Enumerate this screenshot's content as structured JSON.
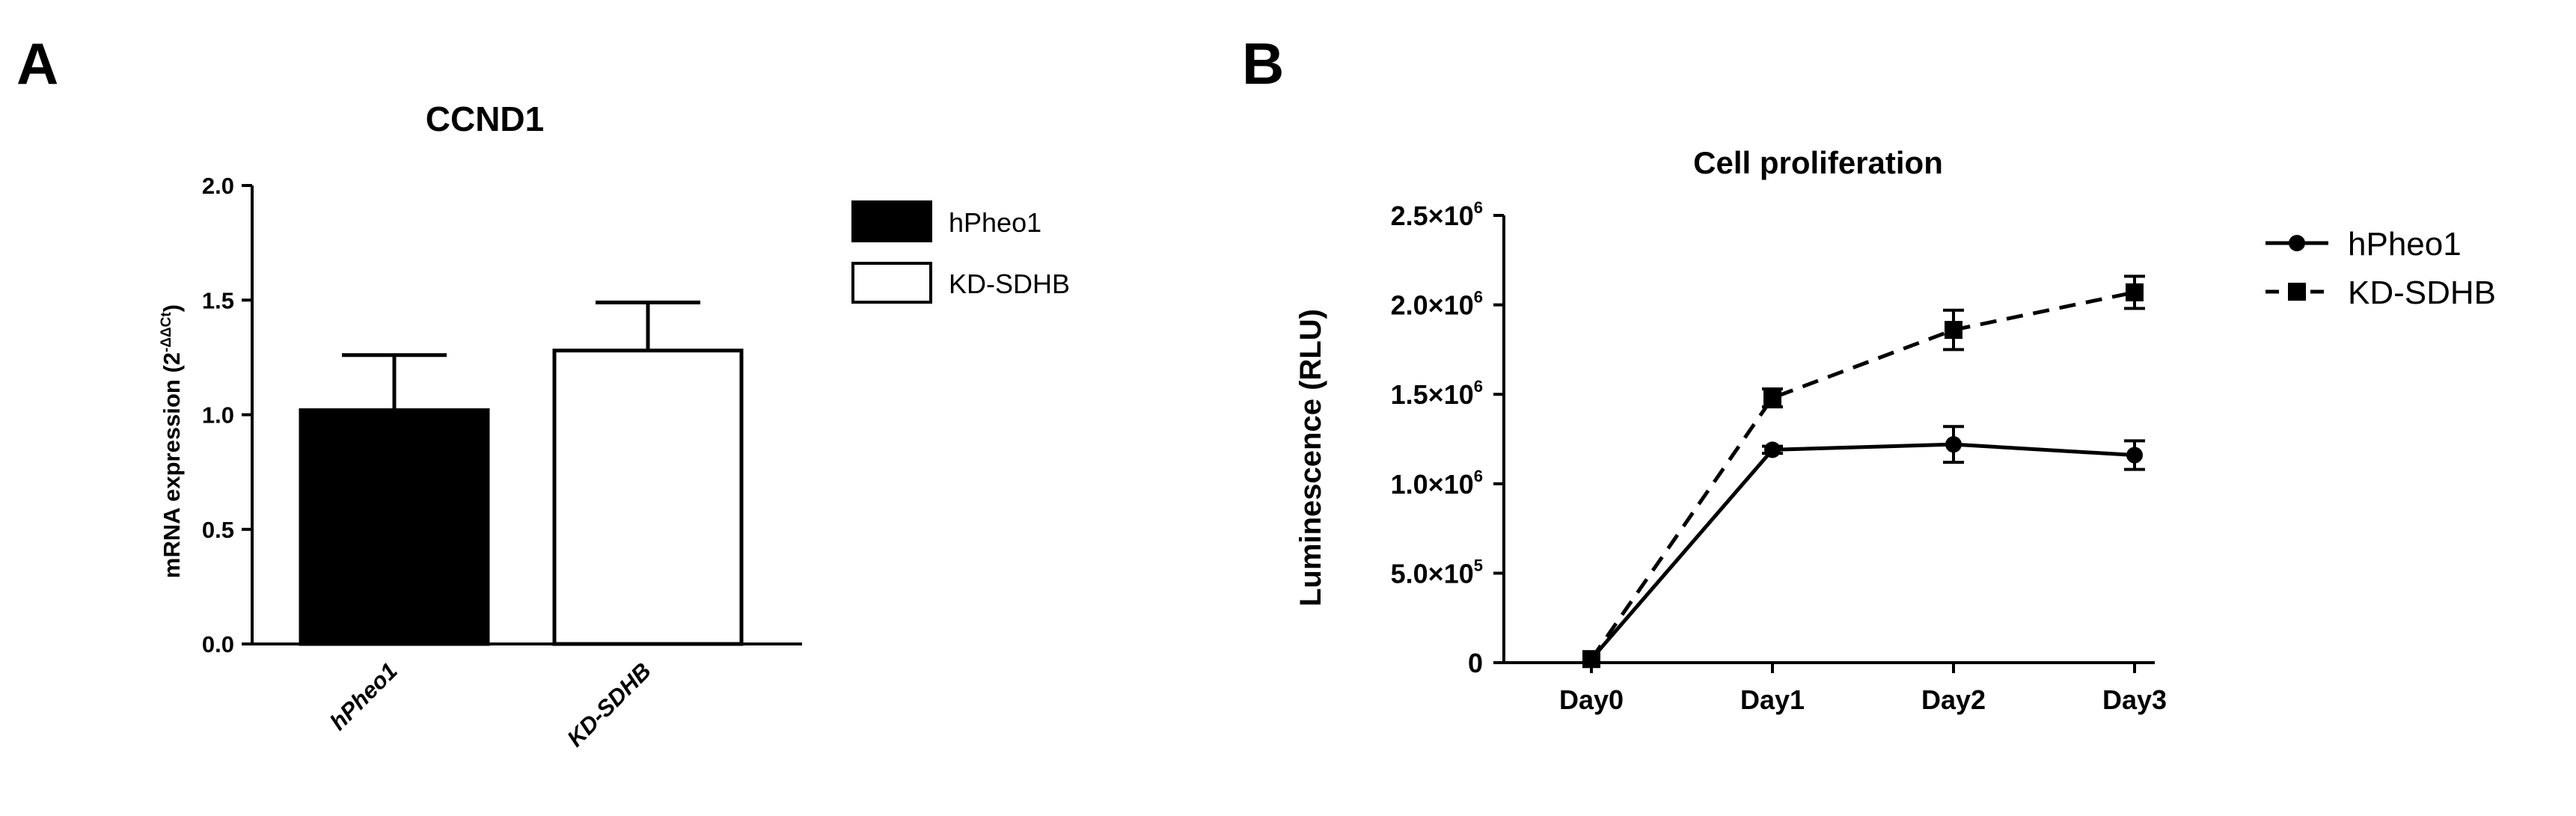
{
  "panels": [
    {
      "letter": "A"
    },
    {
      "letter": "B"
    }
  ],
  "chart_data": [
    {
      "type": "bar",
      "title": "CCND1",
      "ylabel_main": "mRNA expression",
      "ylabel_super": "2",
      "ylabel_super_exp": "-ΔΔCt",
      "categories": [
        "hPheo1",
        "KD-SDHB"
      ],
      "values": [
        1.02,
        1.28
      ],
      "errors": [
        0.24,
        0.21
      ],
      "bar_fills": [
        "#000000",
        "#ffffff"
      ],
      "ylim": [
        0,
        2.0
      ],
      "yticks": [
        "0.0",
        "0.5",
        "1.0",
        "1.5",
        "2.0"
      ],
      "legend": [
        {
          "label": "hPheo1",
          "fill": "#000000"
        },
        {
          "label": "KD-SDHB",
          "fill": "#ffffff"
        }
      ],
      "legend_position": "right",
      "grid": false
    },
    {
      "type": "line",
      "title": "Cell proliferation",
      "ylabel": "Luminescence (RLU)",
      "x": [
        "Day0",
        "Day1",
        "Day2",
        "Day3"
      ],
      "ylim": [
        0,
        2500000
      ],
      "yticks": [
        {
          "mant": "0",
          "exp": ""
        },
        {
          "mant": "5.0×10",
          "exp": "5"
        },
        {
          "mant": "1.0×10",
          "exp": "6"
        },
        {
          "mant": "1.5×10",
          "exp": "6"
        },
        {
          "mant": "2.0×10",
          "exp": "6"
        },
        {
          "mant": "2.5×10",
          "exp": "6"
        }
      ],
      "series": [
        {
          "name": "hPheo1",
          "marker": "circle",
          "line": "solid",
          "values": [
            20000,
            1190000,
            1220000,
            1160000
          ],
          "errors": [
            0,
            20000,
            100000,
            80000
          ]
        },
        {
          "name": "KD-SDHB",
          "marker": "square",
          "line": "dashed",
          "values": [
            20000,
            1480000,
            1860000,
            2070000
          ],
          "errors": [
            0,
            50000,
            110000,
            90000
          ]
        }
      ],
      "legend_position": "right",
      "grid": false
    }
  ]
}
